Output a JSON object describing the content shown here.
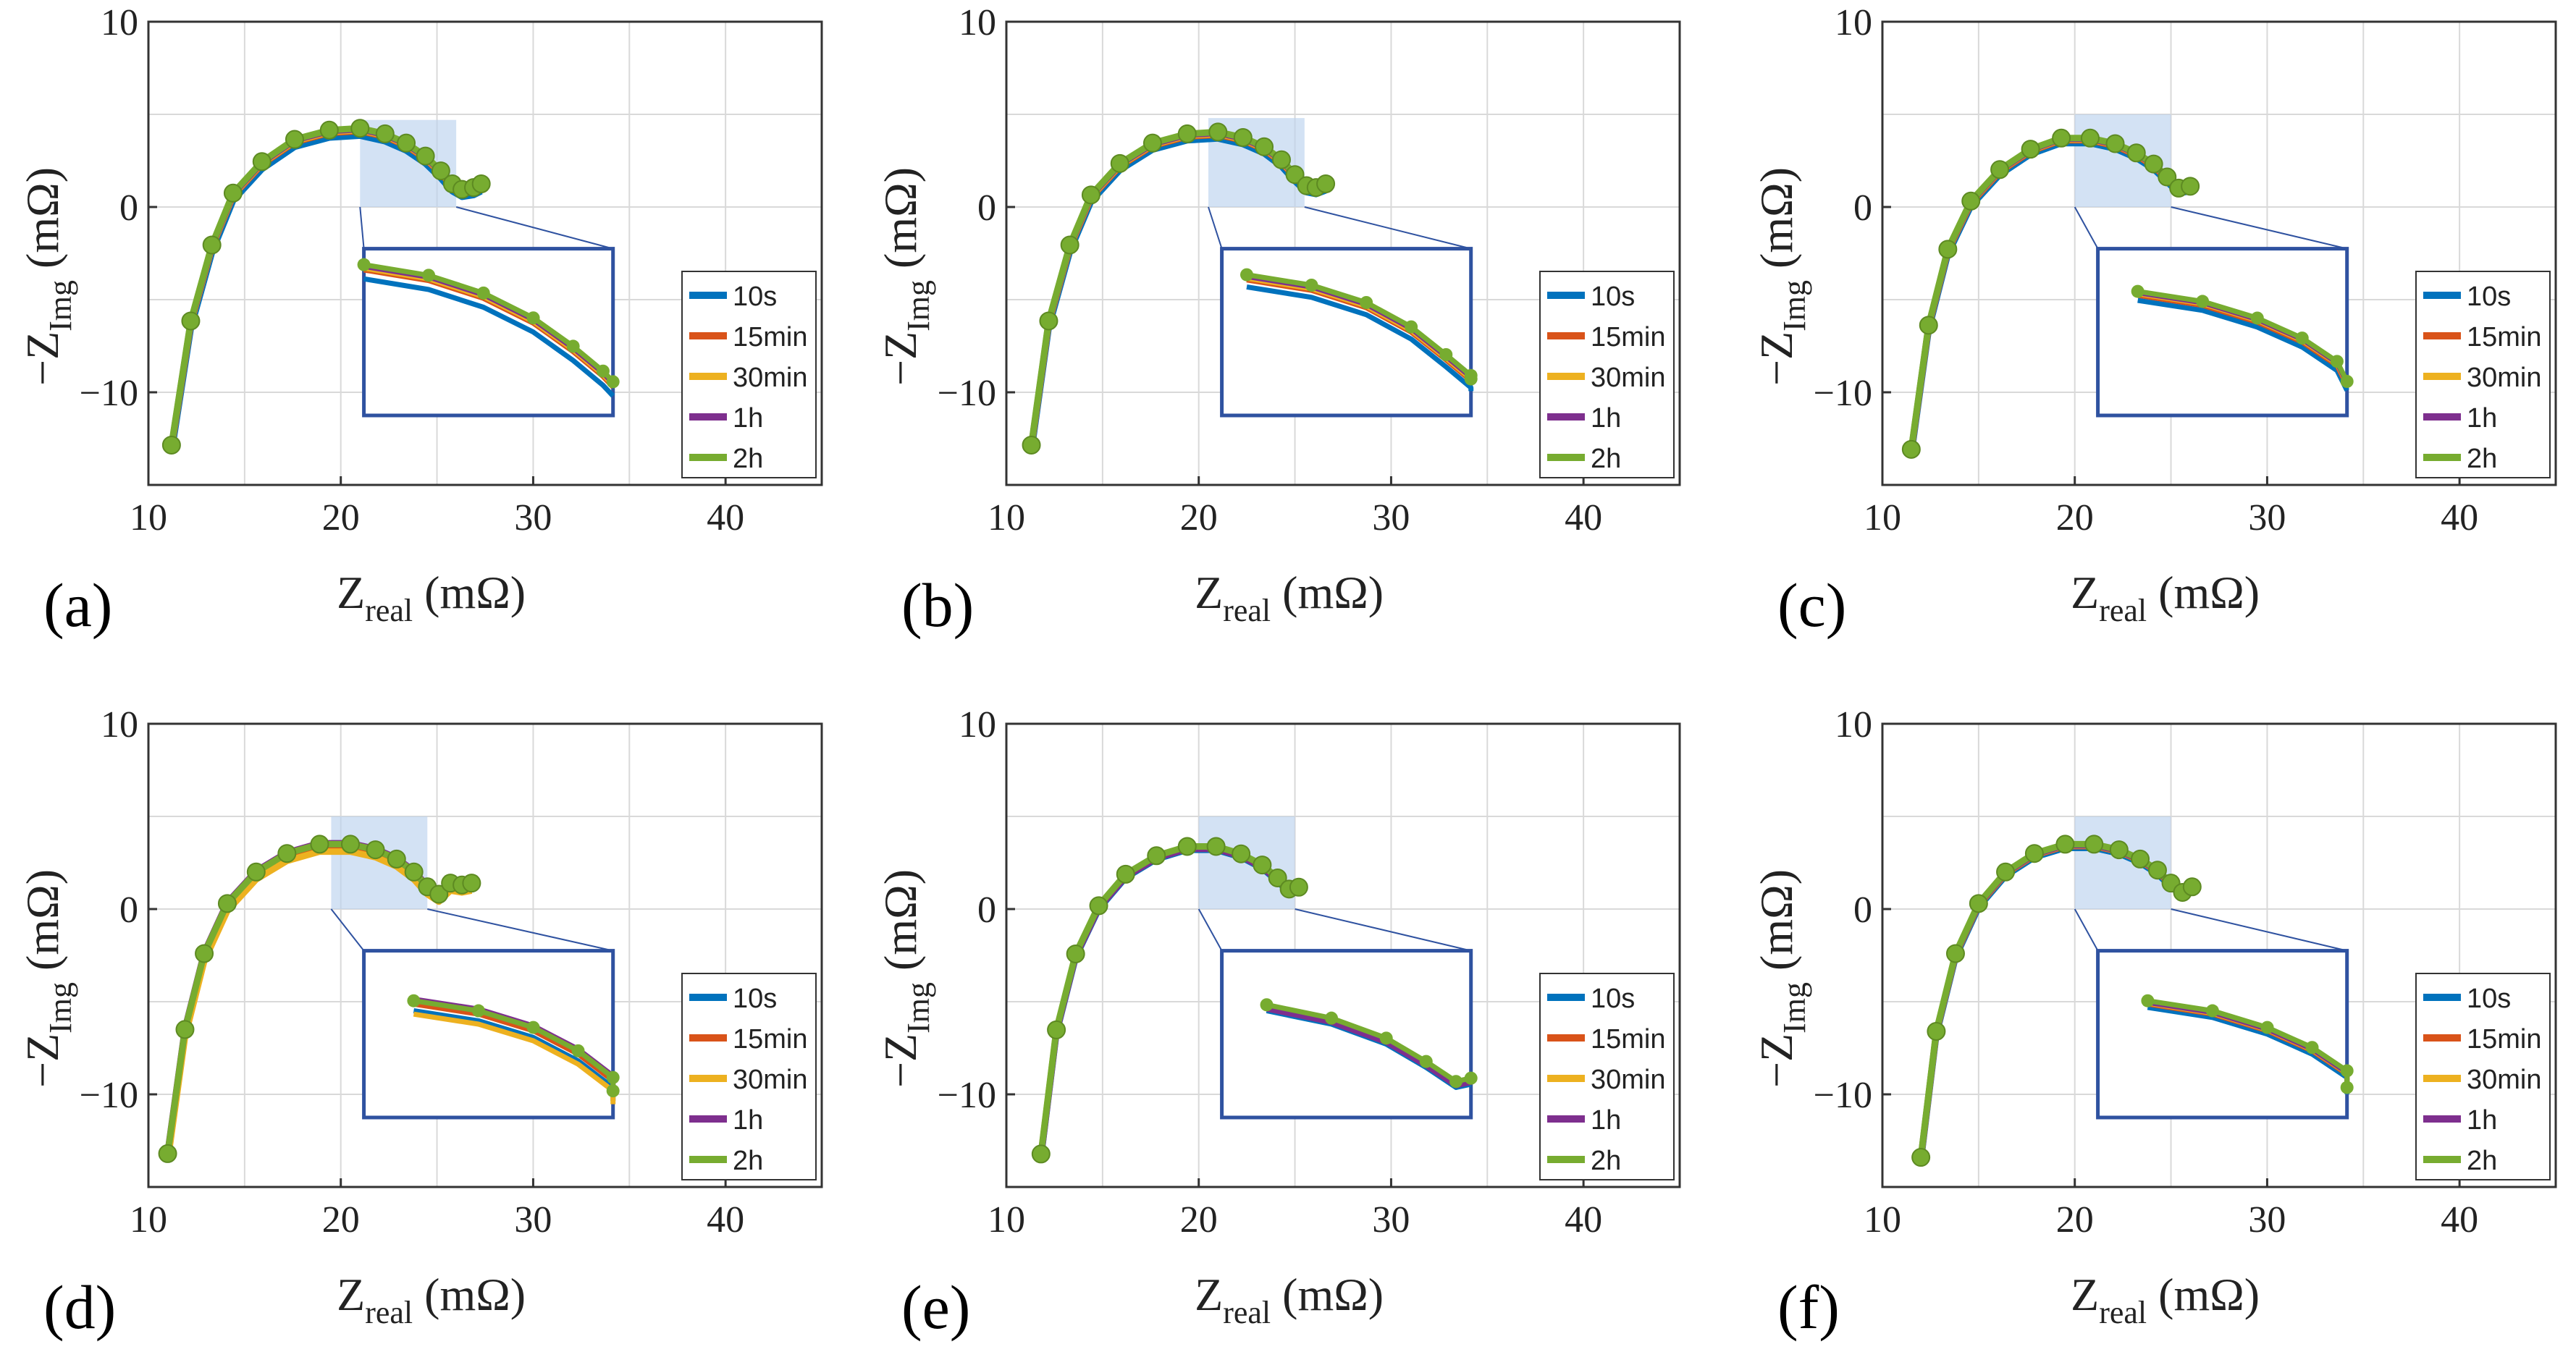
{
  "colors": {
    "10s": "#0072BD",
    "15min": "#D95319",
    "30min": "#EDB120",
    "1h": "#7E2F8E",
    "2h": "#77AC30",
    "inset_frame": "#2f52a0",
    "zoom_box": "#bcd3ee"
  },
  "chart_data": [
    {
      "type": "line",
      "panel_label": "(a)",
      "xlabel_main": "Z",
      "xlabel_sub": "real",
      "xlabel_unit": " (mΩ)",
      "ylabel_prefix": "−Z",
      "ylabel_sub": "Img",
      "ylabel_unit": " (mΩ)",
      "xlim": [
        10,
        45
      ],
      "ylim": [
        -15,
        10
      ],
      "xticks": [
        10,
        20,
        30,
        40
      ],
      "xtick_labels": [
        "10",
        "20",
        "30",
        "40"
      ],
      "yticks": [
        -10,
        0,
        10
      ],
      "ytick_labels": [
        "−10",
        "0",
        "10"
      ],
      "grid": true,
      "legend": [
        "10s",
        "15min",
        "30min",
        "1h",
        "2h"
      ],
      "legend_location": "bottom-right",
      "zoom_region": {
        "x": [
          21,
          26
        ],
        "y": [
          0,
          4.7
        ]
      },
      "base_curve": {
        "x": [
          11.2,
          12.2,
          13.3,
          14.4,
          15.9,
          17.6,
          19.4,
          21.0,
          22.3,
          23.4,
          24.4,
          25.2,
          25.8,
          26.3,
          26.9,
          27.3
        ],
        "y": [
          -13.0,
          -6.3,
          -2.2,
          0.6,
          2.3,
          3.5,
          4.0,
          4.1,
          3.8,
          3.3,
          2.6,
          1.8,
          1.1,
          0.8,
          0.9,
          1.1
        ]
      },
      "series_offsets": [
        {
          "name": "10s",
          "dy": -0.25
        },
        {
          "name": "15min",
          "dy": 0.0
        },
        {
          "name": "30min",
          "dy": 0.05
        },
        {
          "name": "1h",
          "dy": 0.1
        },
        {
          "name": "2h",
          "dy": 0.15
        }
      ]
    },
    {
      "type": "line",
      "panel_label": "(b)",
      "xlabel_main": "Z",
      "xlabel_sub": "real",
      "xlabel_unit": " (mΩ)",
      "ylabel_prefix": "−Z",
      "ylabel_sub": "Img",
      "ylabel_unit": " (mΩ)",
      "xlim": [
        10,
        45
      ],
      "ylim": [
        -15,
        10
      ],
      "xticks": [
        10,
        20,
        30,
        40
      ],
      "xtick_labels": [
        "10",
        "20",
        "30",
        "40"
      ],
      "yticks": [
        -10,
        0,
        10
      ],
      "ytick_labels": [
        "−10",
        "0",
        "10"
      ],
      "grid": true,
      "legend": [
        "10s",
        "15min",
        "30min",
        "1h",
        "2h"
      ],
      "legend_location": "bottom-right",
      "zoom_region": {
        "x": [
          20.5,
          25.5
        ],
        "y": [
          0,
          4.8
        ]
      },
      "base_curve": {
        "x": [
          11.3,
          12.2,
          13.3,
          14.4,
          15.9,
          17.6,
          19.4,
          21.0,
          22.3,
          23.4,
          24.3,
          25.0,
          25.6,
          26.1,
          26.6
        ],
        "y": [
          -13.0,
          -6.3,
          -2.2,
          0.5,
          2.2,
          3.3,
          3.8,
          3.9,
          3.6,
          3.1,
          2.4,
          1.6,
          1.0,
          0.9,
          1.1
        ]
      },
      "series_offsets": [
        {
          "name": "10s",
          "dy": -0.2
        },
        {
          "name": "15min",
          "dy": 0.0
        },
        {
          "name": "30min",
          "dy": 0.05
        },
        {
          "name": "1h",
          "dy": 0.1
        },
        {
          "name": "2h",
          "dy": 0.15
        }
      ]
    },
    {
      "type": "line",
      "panel_label": "(c)",
      "xlabel_main": "Z",
      "xlabel_sub": "real",
      "xlabel_unit": " (mΩ)",
      "ylabel_prefix": "−Z",
      "ylabel_sub": "Img",
      "ylabel_unit": " (mΩ)",
      "xlim": [
        10,
        45
      ],
      "ylim": [
        -15,
        10
      ],
      "xticks": [
        10,
        20,
        30,
        40
      ],
      "xtick_labels": [
        "10",
        "20",
        "30",
        "40"
      ],
      "yticks": [
        -10,
        0,
        10
      ],
      "ytick_labels": [
        "−10",
        "0",
        "10"
      ],
      "grid": true,
      "legend": [
        "10s",
        "15min",
        "30min",
        "1h",
        "2h"
      ],
      "legend_location": "bottom-right",
      "zoom_region": {
        "x": [
          20,
          25
        ],
        "y": [
          0,
          5
        ]
      },
      "base_curve": {
        "x": [
          11.5,
          12.4,
          13.4,
          14.6,
          16.1,
          17.7,
          19.3,
          20.8,
          22.1,
          23.2,
          24.1,
          24.8,
          25.4,
          26.0
        ],
        "y": [
          -13.2,
          -6.5,
          -2.4,
          0.2,
          1.9,
          3.0,
          3.6,
          3.6,
          3.3,
          2.8,
          2.2,
          1.5,
          0.9,
          1.0
        ]
      },
      "series_offsets": [
        {
          "name": "10s",
          "dy": -0.15
        },
        {
          "name": "15min",
          "dy": 0.0
        },
        {
          "name": "30min",
          "dy": 0.05
        },
        {
          "name": "1h",
          "dy": 0.08
        },
        {
          "name": "2h",
          "dy": 0.12
        }
      ]
    },
    {
      "type": "line",
      "panel_label": "(d)",
      "xlabel_main": "Z",
      "xlabel_sub": "real",
      "xlabel_unit": " (mΩ)",
      "ylabel_prefix": "−Z",
      "ylabel_sub": "Img",
      "ylabel_unit": " (mΩ)",
      "xlim": [
        10,
        45
      ],
      "ylim": [
        -15,
        10
      ],
      "xticks": [
        10,
        20,
        30,
        40
      ],
      "xtick_labels": [
        "10",
        "20",
        "30",
        "40"
      ],
      "yticks": [
        -10,
        0,
        10
      ],
      "ytick_labels": [
        "−10",
        "0",
        "10"
      ],
      "grid": true,
      "legend": [
        "10s",
        "15min",
        "30min",
        "1h",
        "2h"
      ],
      "legend_location": "bottom-right",
      "zoom_region": {
        "x": [
          19.5,
          24.5
        ],
        "y": [
          0,
          5
        ]
      },
      "base_curve": {
        "x": [
          11.0,
          11.9,
          12.9,
          14.1,
          15.6,
          17.2,
          18.9,
          20.5,
          21.8,
          22.9,
          23.8,
          24.5,
          25.1,
          25.7,
          26.3,
          26.8
        ],
        "y": [
          -13.3,
          -6.6,
          -2.5,
          0.2,
          1.9,
          2.9,
          3.4,
          3.4,
          3.1,
          2.6,
          1.9,
          1.1,
          0.7,
          1.3,
          1.2,
          1.3
        ]
      },
      "series_offsets": [
        {
          "name": "10s",
          "dy": -0.2
        },
        {
          "name": "15min",
          "dy": 0.0
        },
        {
          "name": "30min",
          "dy": -0.3
        },
        {
          "name": "1h",
          "dy": 0.15
        },
        {
          "name": "2h",
          "dy": 0.1
        }
      ]
    },
    {
      "type": "line",
      "panel_label": "(e)",
      "xlabel_main": "Z",
      "xlabel_sub": "real",
      "xlabel_unit": " (mΩ)",
      "ylabel_prefix": "−Z",
      "ylabel_sub": "Img",
      "ylabel_unit": " (mΩ)",
      "xlim": [
        10,
        45
      ],
      "ylim": [
        -15,
        10
      ],
      "xticks": [
        10,
        20,
        30,
        40
      ],
      "xtick_labels": [
        "10",
        "20",
        "30",
        "40"
      ],
      "yticks": [
        -10,
        0,
        10
      ],
      "ytick_labels": [
        "−10",
        "0",
        "10"
      ],
      "grid": true,
      "legend": [
        "10s",
        "15min",
        "30min",
        "1h",
        "2h"
      ],
      "legend_location": "bottom-right",
      "zoom_region": {
        "x": [
          20,
          25
        ],
        "y": [
          0,
          5
        ]
      },
      "base_curve": {
        "x": [
          11.8,
          12.6,
          13.6,
          14.8,
          16.2,
          17.8,
          19.4,
          20.9,
          22.2,
          23.3,
          24.1,
          24.7,
          25.2
        ],
        "y": [
          -13.3,
          -6.6,
          -2.5,
          0.1,
          1.8,
          2.8,
          3.3,
          3.3,
          2.9,
          2.3,
          1.6,
          1.0,
          1.1
        ]
      },
      "series_offsets": [
        {
          "name": "10s",
          "dy": -0.1
        },
        {
          "name": "15min",
          "dy": 0.0
        },
        {
          "name": "30min",
          "dy": 0.03
        },
        {
          "name": "1h",
          "dy": -0.05
        },
        {
          "name": "2h",
          "dy": 0.08
        }
      ]
    },
    {
      "type": "line",
      "panel_label": "(f)",
      "xlabel_main": "Z",
      "xlabel_sub": "real",
      "xlabel_unit": " (mΩ)",
      "ylabel_prefix": "−Z",
      "ylabel_sub": "Img",
      "ylabel_unit": " (mΩ)",
      "xlim": [
        10,
        45
      ],
      "ylim": [
        -15,
        10
      ],
      "xticks": [
        10,
        20,
        30,
        40
      ],
      "xtick_labels": [
        "10",
        "20",
        "30",
        "40"
      ],
      "yticks": [
        -10,
        0,
        10
      ],
      "ytick_labels": [
        "−10",
        "0",
        "10"
      ],
      "grid": true,
      "legend": [
        "10s",
        "15min",
        "30min",
        "1h",
        "2h"
      ],
      "legend_location": "bottom-right",
      "zoom_region": {
        "x": [
          20,
          25
        ],
        "y": [
          0,
          5
        ]
      },
      "base_curve": {
        "x": [
          12.0,
          12.8,
          13.8,
          15.0,
          16.4,
          17.9,
          19.5,
          21.0,
          22.3,
          23.4,
          24.3,
          25.0,
          25.6,
          26.1
        ],
        "y": [
          -13.5,
          -6.7,
          -2.5,
          0.2,
          1.9,
          2.9,
          3.4,
          3.4,
          3.1,
          2.6,
          2.0,
          1.3,
          0.8,
          1.1
        ]
      },
      "series_offsets": [
        {
          "name": "10s",
          "dy": -0.1
        },
        {
          "name": "15min",
          "dy": 0.0
        },
        {
          "name": "30min",
          "dy": 0.03
        },
        {
          "name": "1h",
          "dy": 0.05
        },
        {
          "name": "2h",
          "dy": 0.1
        }
      ]
    }
  ]
}
